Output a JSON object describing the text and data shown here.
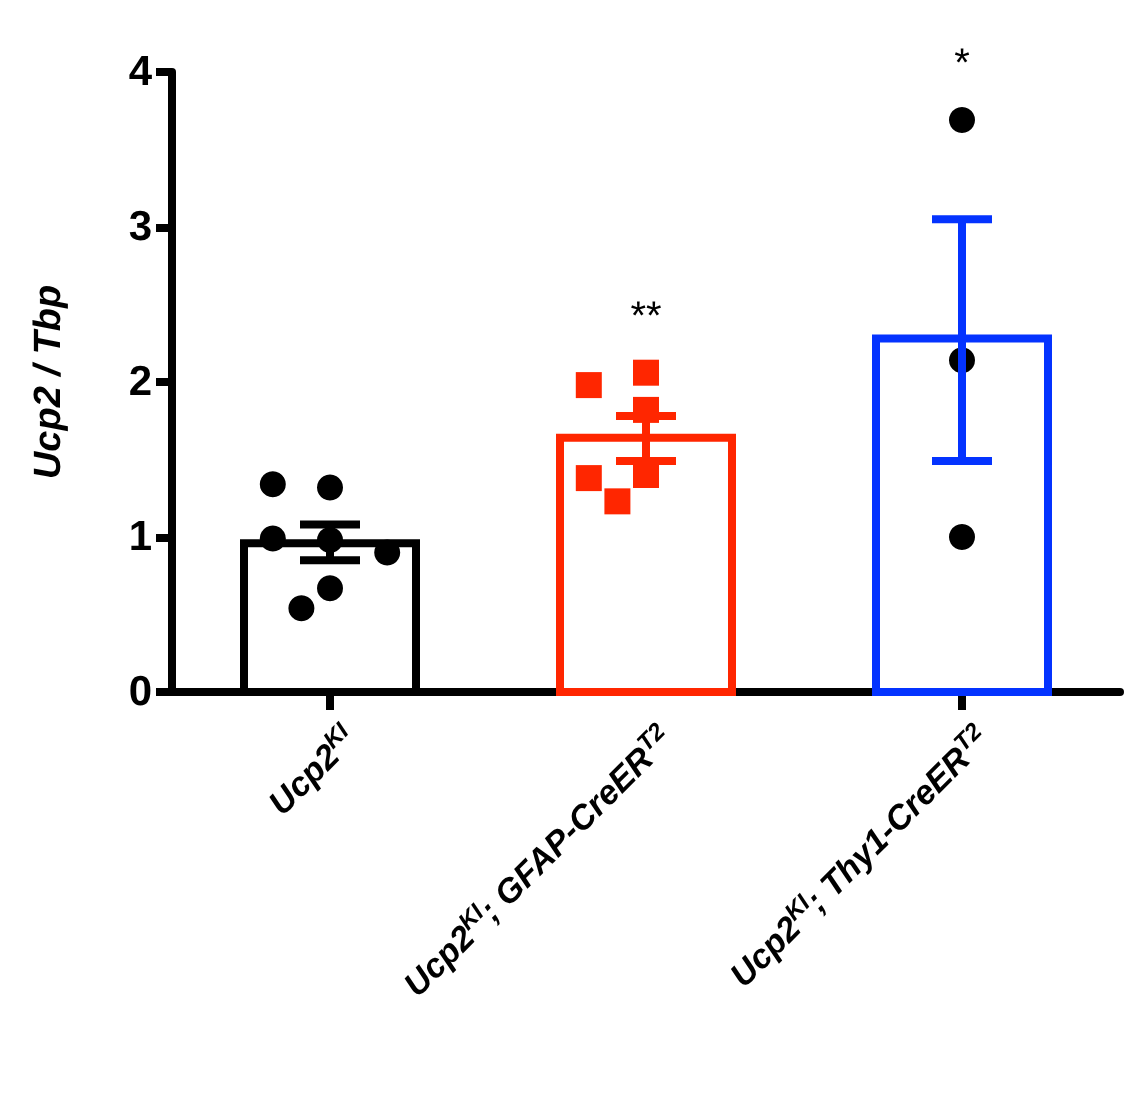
{
  "chart_data": {
    "type": "bar",
    "categories": [
      "Ucp2$^{KI}$",
      "Ucp2$^{KI}$; GFAP-CreER$^{T2}$",
      "Ucp2$^{KI}$; Thy1-CreER$^{T2}$"
    ],
    "values": [
      0.96,
      1.64,
      2.28
    ],
    "colors": [
      "#000000",
      "#ff2600",
      "#0433ff"
    ],
    "errors": [
      [
        0.85,
        1.08
      ],
      [
        1.49,
        1.78
      ],
      [
        1.49,
        3.05
      ]
    ],
    "series": [
      {
        "type": "scatter",
        "color": "#000000",
        "marker": "circle",
        "x": [
          "Ucp2$^{KI}$",
          "Ucp2$^{KI}$",
          "Ucp2$^{KI}$",
          "Ucp2$^{KI}$",
          "Ucp2$^{KI}$",
          "Ucp2$^{KI}$",
          "Ucp2$^{KI}$"
        ],
        "values": [
          1.32,
          1.34,
          0.98,
          0.99,
          0.9,
          0.67,
          0.54
        ]
      },
      {
        "type": "scatter",
        "color": "#ff2600",
        "marker": "square",
        "x": [
          "Ucp2$^{KI}$; GFAP-CreER$^{T2}$",
          "Ucp2$^{KI}$; GFAP-CreER$^{T2}$",
          "Ucp2$^{KI}$; GFAP-CreER$^{T2}$",
          "Ucp2$^{KI}$; GFAP-CreER$^{T2}$",
          "Ucp2$^{KI}$; GFAP-CreER$^{T2}$",
          "Ucp2$^{KI}$; GFAP-CreER$^{T2}$"
        ],
        "values": [
          2.06,
          1.98,
          1.82,
          1.4,
          1.38,
          1.23
        ]
      },
      {
        "type": "scatter",
        "color": "#000000",
        "marker": "circle",
        "x": [
          "Ucp2$^{KI}$; Thy1-CreER$^{T2}$",
          "Ucp2$^{KI}$; Thy1-CreER$^{T2}$",
          "Ucp2$^{KI}$; Thy1-CreER$^{T2}$"
        ],
        "values": [
          3.69,
          2.14,
          1.0
        ]
      }
    ],
    "ylabel": "Ucp2 / Tbp",
    "ylim": [
      0,
      4
    ],
    "yticks": [
      0,
      1,
      2,
      3,
      4
    ],
    "annotations": [
      "**",
      "*"
    ],
    "grid": false
  }
}
